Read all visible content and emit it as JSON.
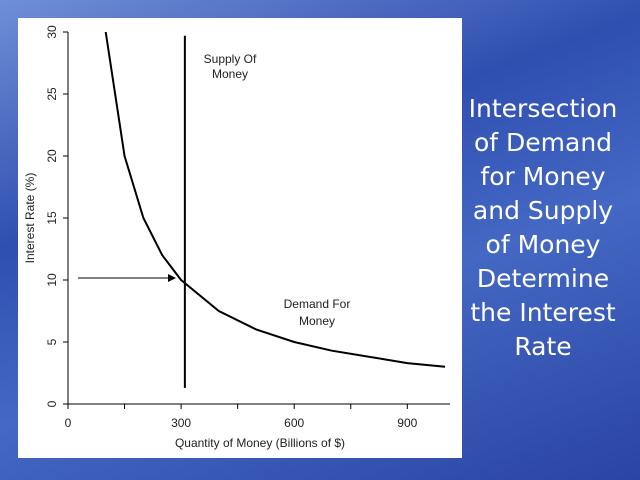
{
  "heading": "Intersection of Demand for Money and Supply of Money Determine the Interest Rate",
  "chart_data": {
    "type": "line",
    "x_label": "Quantity of Money (Billions of $)",
    "y_label": "Interest Rate (%)",
    "annotations": [
      [
        "Supply Of",
        "Money"
      ],
      [
        "Demand For",
        "Money"
      ]
    ],
    "xlim": [
      0,
      1000
    ],
    "xticks": [
      0,
      300,
      600,
      900
    ],
    "xminorticks": [
      150,
      450,
      750
    ],
    "ylim": [
      0,
      30
    ],
    "yticks": [
      0,
      5,
      10,
      15,
      20,
      25,
      30
    ],
    "series": [
      {
        "name": "Demand For Money",
        "color": "#000000",
        "x": [
          100,
          150,
          200,
          250,
          300,
          400,
          500,
          600,
          700,
          800,
          900,
          1000
        ],
        "values": [
          30,
          20,
          15,
          12,
          10,
          7.5,
          6,
          5,
          4.3,
          3.8,
          3.3,
          3
        ]
      },
      {
        "name": "Supply Of Money",
        "color": "#000000",
        "x": [
          310,
          310
        ],
        "values": [
          1.3,
          29.7
        ]
      }
    ]
  }
}
